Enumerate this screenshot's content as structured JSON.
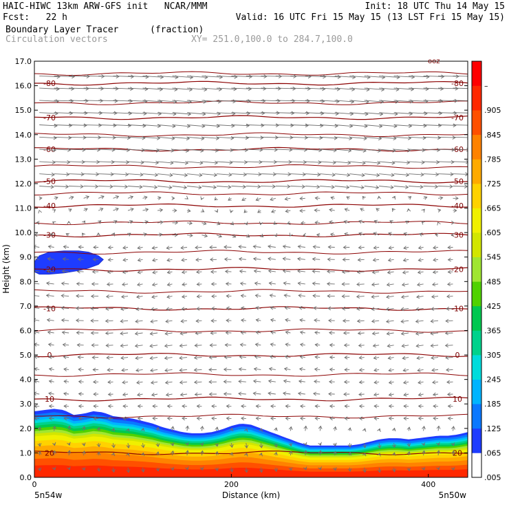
{
  "header": {
    "line1_left": "HAIC-HIWC 13km ARW-GFS init   NCAR/MMM",
    "line1_right": "Init: 18 UTC Thu 14 May 15",
    "line2_left": "Fcst:   22 h",
    "line2_right": "Valid: 16 UTC Fri 15 May 15 (13 LST Fri 15 May 15)",
    "line3_field": "Boundary Layer Tracer",
    "line3_units": "(fraction)",
    "line4_field": "Circulation vectors",
    "line4_xy": "XY= 251.0,100.0 to 284.7,100.0"
  },
  "chart_data": {
    "type": "cross-section",
    "xlabel": "Distance (km)",
    "ylabel": "Height (km)",
    "xlim": [
      0,
      440
    ],
    "ylim": [
      0,
      17
    ],
    "x_ticks": [
      0,
      200,
      400
    ],
    "y_ticks": [
      0.0,
      1.0,
      2.0,
      3.0,
      4.0,
      5.0,
      6.0,
      7.0,
      8.0,
      9.0,
      10.0,
      11.0,
      12.0,
      13.0,
      14.0,
      15.0,
      16.0,
      17.0
    ],
    "x_endpoint_labels": [
      "5n54w",
      "5n50w"
    ],
    "top_right_tag": "ooz",
    "colorbar": {
      "labels": [
        ".005",
        ".065",
        ".125",
        ".185",
        ".245",
        ".305",
        ".365",
        ".425",
        ".485",
        ".545",
        ".605",
        ".665",
        ".725",
        ".785",
        ".845",
        ".905",
        "–"
      ],
      "colors": [
        "#ffffff",
        "#1e3cff",
        "#0a78ff",
        "#00b4ff",
        "#00dcdc",
        "#00d28c",
        "#00c850",
        "#50d200",
        "#a0e632",
        "#d2e600",
        "#f0f000",
        "#ffd200",
        "#ffaa00",
        "#ff8200",
        "#ff5000",
        "#ff2800",
        "#ff0000"
      ]
    },
    "temperature_contours": [
      {
        "label": "-80",
        "height": 16.1
      },
      {
        "label": "-70",
        "height": 14.7
      },
      {
        "label": "-60",
        "height": 13.4
      },
      {
        "label": "-50",
        "height": 12.1
      },
      {
        "label": "-40",
        "height": 11.1
      },
      {
        "label": "-30",
        "height": 9.9
      },
      {
        "label": "-20",
        "height": 8.5
      },
      {
        "label": "-10",
        "height": 6.9
      },
      {
        "label": "0",
        "height": 5.0
      },
      {
        "label": "10",
        "height": 3.2
      },
      {
        "label": "20",
        "height": 1.0
      }
    ],
    "extra_contour_heights": [
      16.5,
      15.3,
      14.0,
      12.7,
      11.6,
      10.4,
      9.2,
      7.6,
      6.0,
      4.2,
      2.5
    ],
    "tracer_boundary_top": {
      "x": [
        0,
        10,
        20,
        30,
        40,
        50,
        60,
        70,
        80,
        90,
        100,
        110,
        120,
        130,
        140,
        150,
        160,
        170,
        180,
        190,
        200,
        210,
        220,
        230,
        240,
        250,
        260,
        270,
        280,
        290,
        300,
        310,
        320,
        330,
        340,
        350,
        360,
        370,
        380,
        390,
        400,
        410,
        420,
        430,
        440
      ],
      "height": [
        2.7,
        2.75,
        2.8,
        2.75,
        2.55,
        2.6,
        2.7,
        2.65,
        2.5,
        2.45,
        2.4,
        2.3,
        2.2,
        2.05,
        1.95,
        1.85,
        1.8,
        1.8,
        1.85,
        1.95,
        2.1,
        2.2,
        2.15,
        2.0,
        1.85,
        1.7,
        1.55,
        1.4,
        1.3,
        1.3,
        1.3,
        1.3,
        1.3,
        1.35,
        1.45,
        1.55,
        1.6,
        1.6,
        1.55,
        1.6,
        1.65,
        1.7,
        1.7,
        1.75,
        1.85
      ]
    },
    "upper_tracer_patch": {
      "x": [
        0,
        5,
        15,
        30,
        45,
        55,
        65,
        70,
        65,
        55,
        45,
        30,
        15,
        5,
        0
      ],
      "height": [
        8.8,
        9.05,
        9.2,
        9.25,
        9.25,
        9.2,
        9.05,
        8.9,
        8.7,
        8.55,
        8.45,
        8.35,
        8.3,
        8.3,
        8.4
      ]
    },
    "upper_tracer_value": ".065"
  }
}
